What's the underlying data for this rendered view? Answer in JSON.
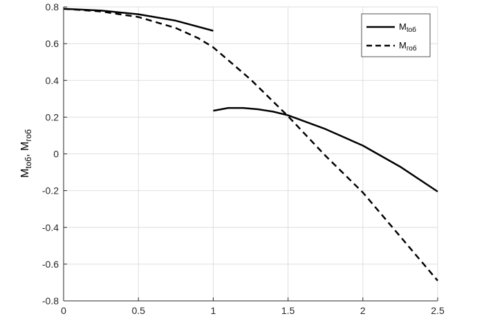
{
  "chart_data": {
    "type": "line",
    "title": "",
    "xlabel": "",
    "ylabel": {
      "main1": "M",
      "sub1": "tоб",
      "sep": ", ",
      "main2": "M",
      "sub2": "гоб"
    },
    "xlim": [
      0,
      2.5
    ],
    "ylim": [
      -0.8,
      0.8
    ],
    "xticks": [
      "0",
      "0.5",
      "1",
      "1.5",
      "2",
      "2.5"
    ],
    "yticks": [
      "-0.8",
      "-0.6",
      "-0.4",
      "-0.2",
      "0",
      "0.2",
      "0.4",
      "0.6",
      "0.8"
    ],
    "grid": true,
    "legend_position": "top-right",
    "series": [
      {
        "name": {
          "main": "M",
          "sub": "tоб"
        },
        "style": "solid",
        "color": "#000000",
        "segments": [
          {
            "x": [
              0,
              0.25,
              0.5,
              0.75,
              1.0
            ],
            "y": [
              0.79,
              0.78,
              0.76,
              0.725,
              0.67
            ]
          },
          {
            "x": [
              1.0,
              1.1,
              1.2,
              1.3,
              1.4,
              1.5,
              1.75,
              2.0,
              2.25,
              2.5
            ],
            "y": [
              0.235,
              0.25,
              0.25,
              0.243,
              0.23,
              0.21,
              0.135,
              0.045,
              -0.07,
              -0.205
            ]
          }
        ]
      },
      {
        "name": {
          "main": "M",
          "sub": "гоб"
        },
        "style": "dashed",
        "color": "#000000",
        "segments": [
          {
            "x": [
              0,
              0.25,
              0.5,
              0.75,
              0.9,
              1.0,
              1.25,
              1.5,
              1.75,
              2.0,
              2.25,
              2.5
            ],
            "y": [
              0.79,
              0.775,
              0.745,
              0.685,
              0.63,
              0.58,
              0.405,
              0.205,
              -0.01,
              -0.21,
              -0.45,
              -0.69
            ]
          }
        ]
      }
    ]
  }
}
